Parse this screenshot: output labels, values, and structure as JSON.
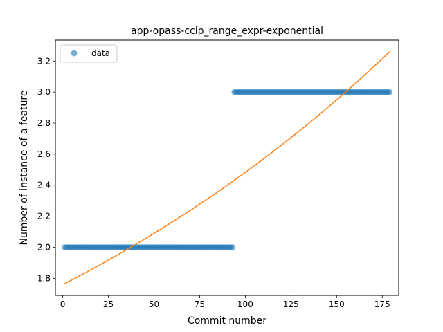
{
  "chart_data": {
    "type": "scatter",
    "title": "app-opass-ccip_range_expr-exponential",
    "xlabel": "Commit number",
    "ylabel": "Number of instance of a feature",
    "xlim": [
      -4,
      184
    ],
    "ylim": [
      1.69,
      3.335
    ],
    "xticks": [
      0,
      25,
      50,
      75,
      100,
      125,
      150,
      175
    ],
    "yticks": [
      1.8,
      2.0,
      2.2,
      2.4,
      2.6,
      2.8,
      3.0,
      3.2
    ],
    "ytick_labels": [
      "1.8",
      "2.0",
      "2.2",
      "2.4",
      "2.6",
      "2.8",
      "3.0",
      "3.2"
    ],
    "grid": false,
    "legend": {
      "placement": "top-left",
      "entries": [
        "data"
      ]
    },
    "series": [
      {
        "name": "data",
        "kind": "scatter",
        "color": "#1f77b4",
        "segments": [
          {
            "x_start": 1,
            "x_end": 93,
            "y": 2.0
          },
          {
            "x_start": 94,
            "x_end": 179,
            "y": 3.0
          }
        ]
      },
      {
        "kind": "line",
        "color": "#ff7f0e",
        "x_start": 1,
        "x_end": 179,
        "y_start": 1.765,
        "y_end": 3.26
      }
    ]
  }
}
